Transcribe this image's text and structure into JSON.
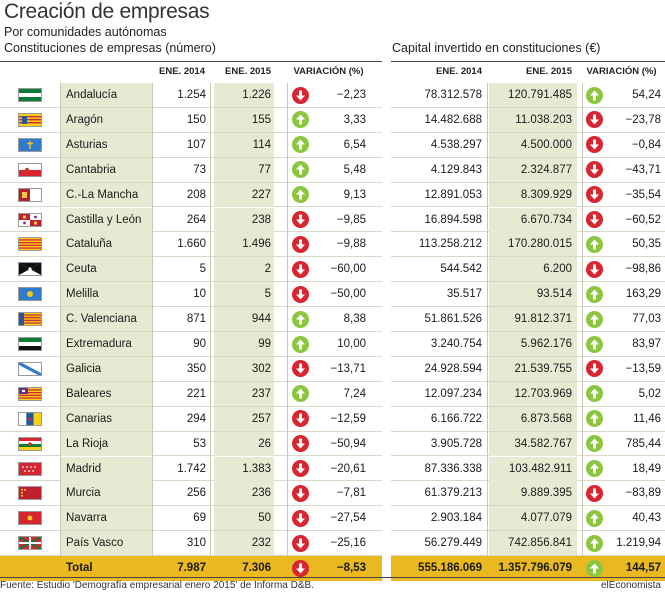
{
  "header": {
    "title": "Creación de empresas",
    "subtitle": "Por comunidades autónomas",
    "left_section": "Constituciones de empresas (número)",
    "right_section": "Capital invertido en constituciones (€)"
  },
  "columns": {
    "y2014": "ENE. 2014",
    "y2015": "ENE. 2015",
    "variation": "VARIACIÓN (%)"
  },
  "chart_data": {
    "type": "table",
    "title": "Creación de empresas",
    "subtitle": "Por comunidades autónomas",
    "rows": [
      {
        "region": "Andalucía",
        "emp_2014": "1.254",
        "emp_2015": "1.226",
        "emp_var": "−2,23",
        "emp_dir": "down",
        "cap_2014": "78.312.578",
        "cap_2015": "120.791.485",
        "cap_var": "54,24",
        "cap_dir": "up",
        "flag": "andalucia-flag"
      },
      {
        "region": "Aragón",
        "emp_2014": "150",
        "emp_2015": "155",
        "emp_var": "3,33",
        "emp_dir": "up",
        "cap_2014": "14.482.688",
        "cap_2015": "11.038.203",
        "cap_var": "−23,78",
        "cap_dir": "down",
        "flag": "aragon-flag"
      },
      {
        "region": "Asturias",
        "emp_2014": "107",
        "emp_2015": "114",
        "emp_var": "6,54",
        "emp_dir": "up",
        "cap_2014": "4.538.297",
        "cap_2015": "4.500.000",
        "cap_var": "−0,84",
        "cap_dir": "down",
        "flag": "asturias-flag"
      },
      {
        "region": "Cantabria",
        "emp_2014": "73",
        "emp_2015": "77",
        "emp_var": "5,48",
        "emp_dir": "up",
        "cap_2014": "4.129.843",
        "cap_2015": "2.324.877",
        "cap_var": "−43,71",
        "cap_dir": "down",
        "flag": "cantabria-flag"
      },
      {
        "region": "C.-La Mancha",
        "emp_2014": "208",
        "emp_2015": "227",
        "emp_var": "9,13",
        "emp_dir": "up",
        "cap_2014": "12.891.053",
        "cap_2015": "8.309.929",
        "cap_var": "−35,54",
        "cap_dir": "down",
        "flag": "castilla-la-mancha-flag"
      },
      {
        "region": "Castilla y León",
        "emp_2014": "264",
        "emp_2015": "238",
        "emp_var": "−9,85",
        "emp_dir": "down",
        "cap_2014": "16.894.598",
        "cap_2015": "6.670.734",
        "cap_var": "−60,52",
        "cap_dir": "down",
        "flag": "castilla-y-leon-flag"
      },
      {
        "region": "Cataluña",
        "emp_2014": "1.660",
        "emp_2015": "1.496",
        "emp_var": "−9,88",
        "emp_dir": "down",
        "cap_2014": "113.258.212",
        "cap_2015": "170.280.015",
        "cap_var": "50,35",
        "cap_dir": "up",
        "flag": "cataluna-flag"
      },
      {
        "region": "Ceuta",
        "emp_2014": "5",
        "emp_2015": "2",
        "emp_var": "−60,00",
        "emp_dir": "down",
        "cap_2014": "544.542",
        "cap_2015": "6.200",
        "cap_var": "−98,86",
        "cap_dir": "down",
        "flag": "ceuta-flag"
      },
      {
        "region": "Melilla",
        "emp_2014": "10",
        "emp_2015": "5",
        "emp_var": "−50,00",
        "emp_dir": "down",
        "cap_2014": "35.517",
        "cap_2015": "93.514",
        "cap_var": "163,29",
        "cap_dir": "up",
        "flag": "melilla-flag"
      },
      {
        "region": "C. Valenciana",
        "emp_2014": "871",
        "emp_2015": "944",
        "emp_var": "8,38",
        "emp_dir": "up",
        "cap_2014": "51.861.526",
        "cap_2015": "91.812.371",
        "cap_var": "77,03",
        "cap_dir": "up",
        "flag": "valenciana-flag"
      },
      {
        "region": "Extremadura",
        "emp_2014": "90",
        "emp_2015": "99",
        "emp_var": "10,00",
        "emp_dir": "up",
        "cap_2014": "3.240.754",
        "cap_2015": "5.962.176",
        "cap_var": "83,97",
        "cap_dir": "up",
        "flag": "extremadura-flag"
      },
      {
        "region": "Galicia",
        "emp_2014": "350",
        "emp_2015": "302",
        "emp_var": "−13,71",
        "emp_dir": "down",
        "cap_2014": "24.928.594",
        "cap_2015": "21.539.755",
        "cap_var": "−13,59",
        "cap_dir": "down",
        "flag": "galicia-flag"
      },
      {
        "region": "Baleares",
        "emp_2014": "221",
        "emp_2015": "237",
        "emp_var": "7,24",
        "emp_dir": "up",
        "cap_2014": "12.097.234",
        "cap_2015": "12.703.969",
        "cap_var": "5,02",
        "cap_dir": "up",
        "flag": "baleares-flag"
      },
      {
        "region": "Canarias",
        "emp_2014": "294",
        "emp_2015": "257",
        "emp_var": "−12,59",
        "emp_dir": "down",
        "cap_2014": "6.166.722",
        "cap_2015": "6.873.568",
        "cap_var": "11,46",
        "cap_dir": "up",
        "flag": "canarias-flag"
      },
      {
        "region": "La Rioja",
        "emp_2014": "53",
        "emp_2015": "26",
        "emp_var": "−50,94",
        "emp_dir": "down",
        "cap_2014": "3.905.728",
        "cap_2015": "34.582.767",
        "cap_var": "785,44",
        "cap_dir": "up",
        "flag": "la-rioja-flag"
      },
      {
        "region": "Madrid",
        "emp_2014": "1.742",
        "emp_2015": "1.383",
        "emp_var": "−20,61",
        "emp_dir": "down",
        "cap_2014": "87.336.338",
        "cap_2015": "103.482.911",
        "cap_var": "18,49",
        "cap_dir": "up",
        "flag": "madrid-flag"
      },
      {
        "region": "Murcia",
        "emp_2014": "256",
        "emp_2015": "236",
        "emp_var": "−7,81",
        "emp_dir": "down",
        "cap_2014": "61.379.213",
        "cap_2015": "9.889.395",
        "cap_var": "−83,89",
        "cap_dir": "down",
        "flag": "murcia-flag"
      },
      {
        "region": "Navarra",
        "emp_2014": "69",
        "emp_2015": "50",
        "emp_var": "−27,54",
        "emp_dir": "down",
        "cap_2014": "2.903.184",
        "cap_2015": "4.077.079",
        "cap_var": "40,43",
        "cap_dir": "up",
        "flag": "navarra-flag"
      },
      {
        "region": "País Vasco",
        "emp_2014": "310",
        "emp_2015": "232",
        "emp_var": "−25,16",
        "emp_dir": "down",
        "cap_2014": "56.279.449",
        "cap_2015": "742.856.841",
        "cap_var": "1.219,94",
        "cap_dir": "up",
        "flag": "pais-vasco-flag"
      }
    ],
    "total": {
      "region": "Total",
      "emp_2014": "7.987",
      "emp_2015": "7.306",
      "emp_var": "−8,53",
      "emp_dir": "down",
      "cap_2014": "555.186.069",
      "cap_2015": "1.357.796.079",
      "cap_var": "144,57",
      "cap_dir": "up"
    }
  },
  "colors": {
    "up_arrow": "#8cc63f",
    "down_arrow": "#d7262f",
    "total_row": "#e9b91f",
    "column_shade": "#e8e9d2"
  },
  "footer": {
    "source": "Fuente: Estudio 'Demografía empresarial enero 2015' de Informa D&B.",
    "brand": "elEconomista"
  }
}
